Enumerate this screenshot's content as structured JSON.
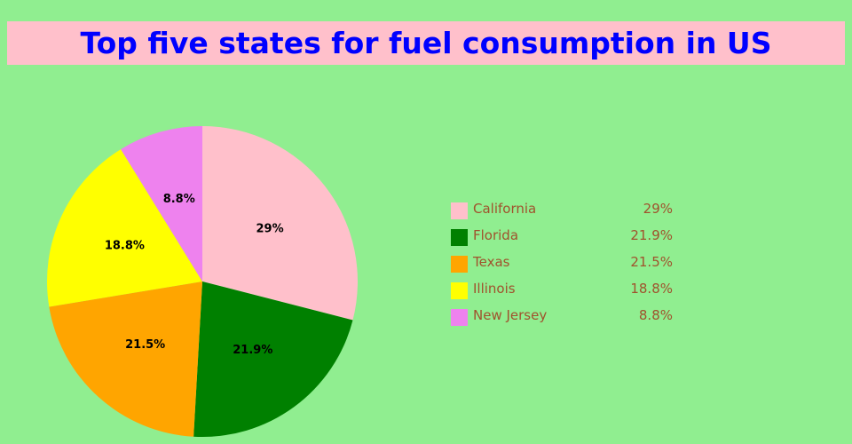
{
  "chart_data": {
    "type": "pie",
    "title": "Top five states for fuel consumption in US",
    "categories": [
      "California",
      "Florida",
      "Texas",
      "Illinois",
      "New Jersey"
    ],
    "values": [
      29,
      21.9,
      21.5,
      18.8,
      8.8
    ],
    "slice_labels": [
      "29%",
      "21.9%",
      "21.5%",
      "18.8%",
      "8.8%"
    ],
    "colors": [
      "#ffc0cb",
      "#008000",
      "#ffa500",
      "#ffff00",
      "#ee82ee"
    ],
    "legend_position": "right"
  },
  "colors": {
    "background": "#90ee90",
    "title_background": "#ffc0cb",
    "title_text": "#0000ff",
    "legend_text": "#a0522d"
  }
}
